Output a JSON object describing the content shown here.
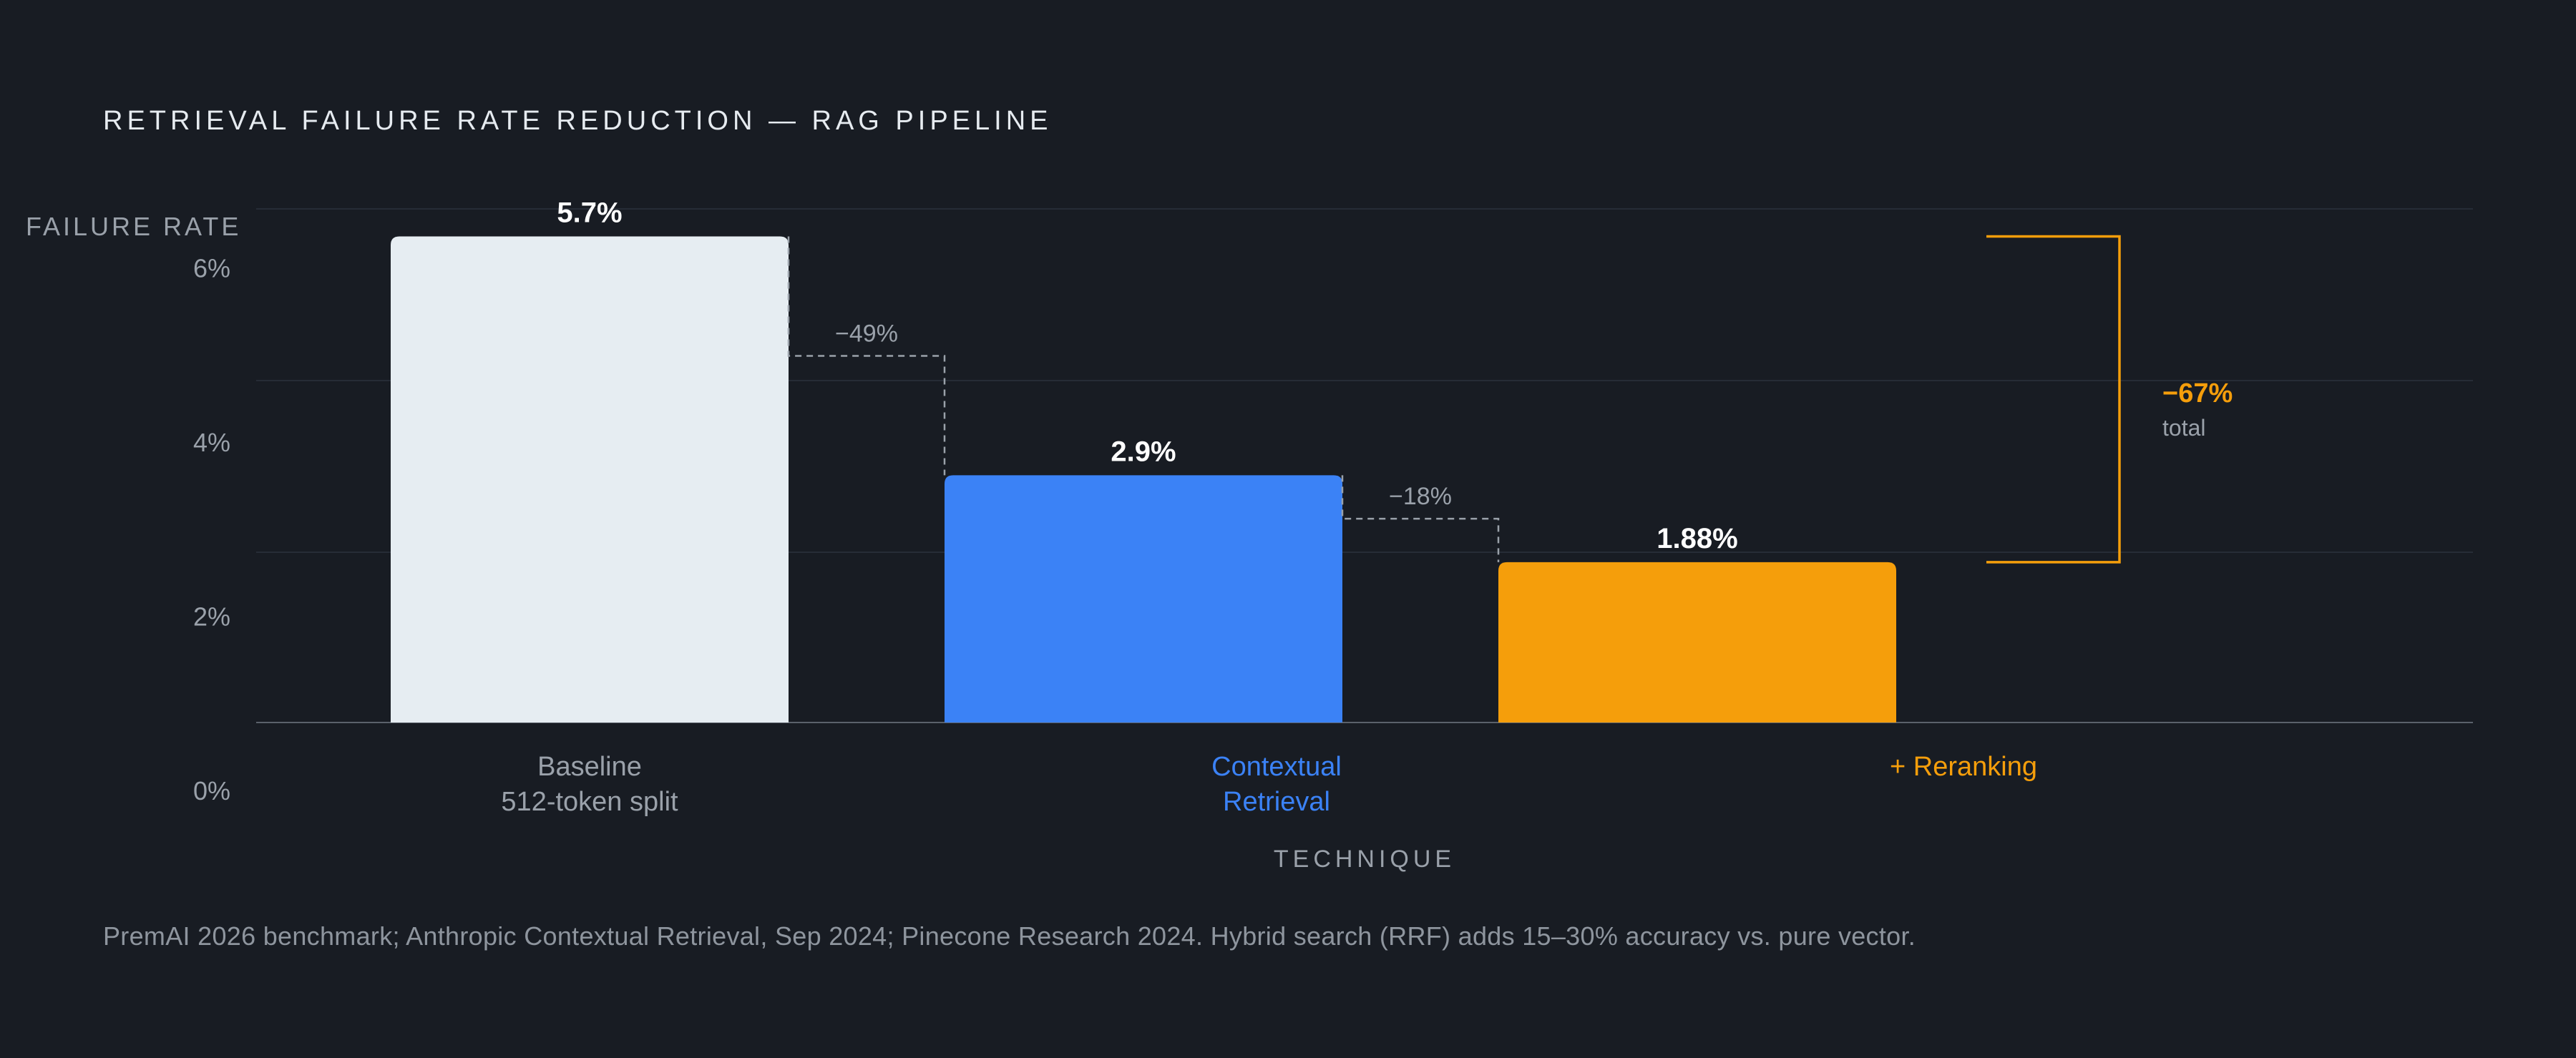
{
  "chart_data": {
    "type": "bar",
    "title": "RETRIEVAL FAILURE RATE REDUCTION — RAG PIPELINE",
    "ylabel": "FAILURE RATE",
    "xlabel": "TECHNIQUE",
    "ylim": [
      0,
      7
    ],
    "yticks": [
      {
        "value": 6,
        "label": "6%"
      },
      {
        "value": 4,
        "label": "4%"
      },
      {
        "value": 2,
        "label": "2%"
      },
      {
        "value": 0,
        "label": "0%"
      }
    ],
    "grid": true,
    "categories": [
      {
        "lines": [
          "Baseline",
          "512-token split"
        ],
        "color": "#9aa1aa"
      },
      {
        "lines": [
          "Contextual",
          "Retrieval"
        ],
        "color": "#3b82f6"
      },
      {
        "lines": [
          "+ Reranking"
        ],
        "color": "#f59e0b"
      }
    ],
    "values": [
      5.7,
      2.9,
      1.88
    ],
    "value_labels": [
      "5.7%",
      "2.9%",
      "1.88%"
    ],
    "bar_colors": [
      "#e6edf2",
      "#3b82f6",
      "#f59e0b"
    ],
    "step_changes": [
      "−49%",
      "−18%"
    ],
    "total_change": {
      "value": "−67%",
      "label": "total",
      "color": "#f59e0b"
    }
  },
  "footnote": "PremAI 2026 benchmark; Anthropic Contextual Retrieval, Sep 2024; Pinecone Research 2024. Hybrid search (RRF) adds 15–30% accuracy vs. pure vector."
}
